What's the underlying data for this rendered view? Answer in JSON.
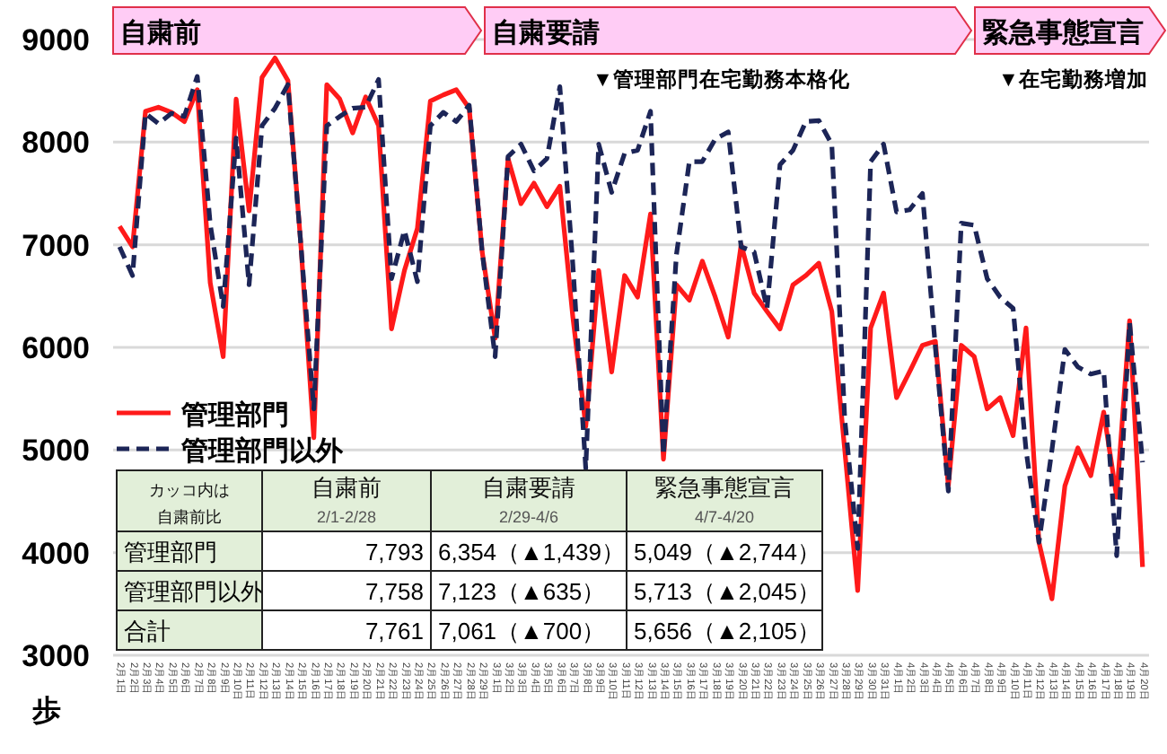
{
  "chart_data": {
    "type": "line",
    "categories": [
      "2月1日",
      "2月2日",
      "2月3日",
      "2月4日",
      "2月5日",
      "2月6日",
      "2月7日",
      "2月8日",
      "2月9日",
      "2月10日",
      "2月11日",
      "2月12日",
      "2月13日",
      "2月14日",
      "2月15日",
      "2月16日",
      "2月17日",
      "2月18日",
      "2月19日",
      "2月20日",
      "2月21日",
      "2月22日",
      "2月23日",
      "2月24日",
      "2月25日",
      "2月26日",
      "2月27日",
      "2月28日",
      "2月29日",
      "3月1日",
      "3月2日",
      "3月3日",
      "3月4日",
      "3月5日",
      "3月6日",
      "3月7日",
      "3月8日",
      "3月9日",
      "3月10日",
      "3月11日",
      "3月12日",
      "3月13日",
      "3月14日",
      "3月15日",
      "3月16日",
      "3月17日",
      "3月18日",
      "3月19日",
      "3月20日",
      "3月21日",
      "3月22日",
      "3月23日",
      "3月24日",
      "3月25日",
      "3月26日",
      "3月27日",
      "3月28日",
      "3月29日",
      "3月30日",
      "3月31日",
      "4月1日",
      "4月2日",
      "4月3日",
      "4月4日",
      "4月5日",
      "4月6日",
      "4月7日",
      "4月8日",
      "4月9日",
      "4月10日",
      "4月11日",
      "4月12日",
      "4月13日",
      "4月14日",
      "4月15日",
      "4月16日",
      "4月17日",
      "4月18日",
      "4月19日",
      "4月20日"
    ],
    "series": [
      {
        "name": "管理部門",
        "color": "#ff1a1a",
        "line_style": "solid",
        "values": [
          7180,
          6980,
          8300,
          8340,
          8290,
          8200,
          8510,
          6630,
          5910,
          8420,
          7330,
          8630,
          8820,
          8600,
          7000,
          5120,
          8560,
          8420,
          8090,
          8440,
          8160,
          6180,
          6750,
          7160,
          8400,
          8460,
          8510,
          8330,
          6930,
          6090,
          7840,
          7400,
          7600,
          7370,
          7570,
          6300,
          5230,
          6750,
          5760,
          6700,
          6490,
          7300,
          4910,
          6610,
          6460,
          6840,
          6490,
          6100,
          7000,
          6530,
          6350,
          6180,
          6610,
          6700,
          6820,
          6350,
          5000,
          3630,
          6190,
          6530,
          5510,
          5760,
          6020,
          6060,
          4650,
          6020,
          5910,
          5400,
          5510,
          5140,
          6190,
          4100,
          3550,
          4650,
          5020,
          4750,
          5370,
          4540,
          6260,
          3860
        ]
      },
      {
        "name": "管理部門以外",
        "color": "#1c2557",
        "line_style": "dashed",
        "values": [
          6980,
          6700,
          8280,
          8180,
          8280,
          8250,
          8640,
          7200,
          6400,
          8040,
          6610,
          8160,
          8330,
          8560,
          7000,
          5400,
          8160,
          8250,
          8330,
          8340,
          8610,
          6670,
          7140,
          6640,
          8160,
          8290,
          8200,
          8360,
          6930,
          5910,
          7860,
          7980,
          7720,
          7840,
          8540,
          6810,
          4820,
          7980,
          7510,
          7890,
          7920,
          8300,
          4950,
          6900,
          7810,
          7810,
          8030,
          8100,
          6980,
          6930,
          6380,
          7780,
          7920,
          8200,
          8210,
          7980,
          5300,
          4040,
          7810,
          7980,
          7320,
          7340,
          7500,
          6000,
          4600,
          7210,
          7190,
          6670,
          6490,
          6380,
          5000,
          4100,
          5000,
          5980,
          5810,
          5740,
          5770,
          3970,
          6240,
          4880
        ]
      }
    ],
    "ylabel": "歩",
    "ylim": [
      3000,
      9000
    ],
    "yticks": [
      3000,
      4000,
      5000,
      6000,
      7000,
      8000,
      9000
    ],
    "grid": "y",
    "legend": "left",
    "marker": "none",
    "annotations": [
      "自粛前",
      "自粛要請",
      "緊急事態宣言",
      "▼管理部門在宅勤務本格化",
      "▼在宅勤務増加",
      "カッコ内は",
      "自粛前比",
      "自粛前",
      "2/1-2/28",
      "自粛要請",
      "2/29-4/6",
      "緊急事態宣言",
      "4/7-4/20",
      "管理部門",
      "7,793",
      "6,354（▲1,439）",
      "5,049（▲2,744）",
      "管理部門以外",
      "7,758",
      "7,123（▲635）",
      "5,713（▲2,045）",
      "合計",
      "7,761",
      "7,061（▲700）",
      "5,656（▲2,105）"
    ]
  }
}
